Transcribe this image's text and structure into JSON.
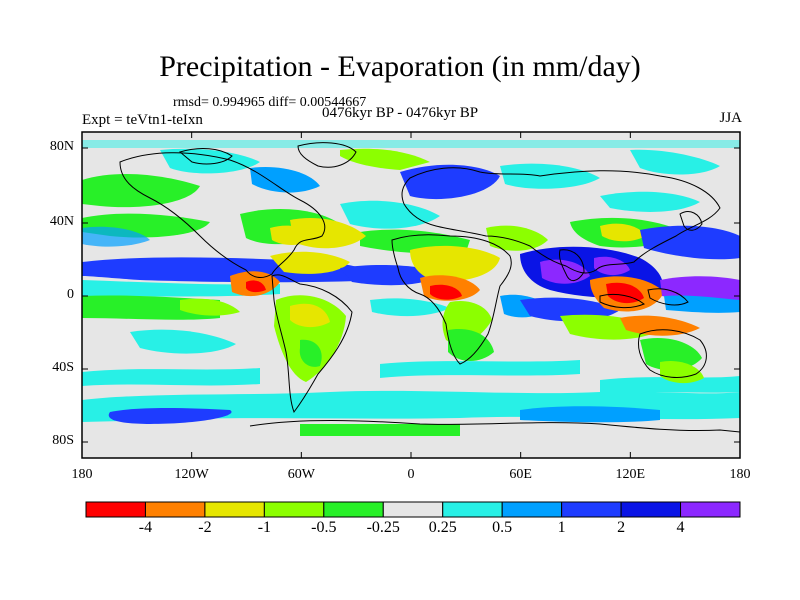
{
  "title": "Precipitation - Evaporation (in mm/day)",
  "stats": "rmsd= 0.994965 diff= 0.00544667",
  "experiment": "Expt = teVtn1-teIxn",
  "period": "0476kyr BP - 0476kyr BP",
  "season": "JJA",
  "lat_labels": [
    "80N",
    "40N",
    "0",
    "40S",
    "80S"
  ],
  "lon_labels": [
    "180",
    "120W",
    "60W",
    "0",
    "60E",
    "120E",
    "180"
  ],
  "colorbar": {
    "labels": [
      "-4",
      "-2",
      "-1",
      "-0.5",
      "-0.25",
      "0.25",
      "0.5",
      "1",
      "2",
      "4"
    ],
    "colors": [
      "#ff0000",
      "#ff8000",
      "#e6e600",
      "#8cff00",
      "#28f028",
      "#e6e6e6",
      "#28f0e6",
      "#00a0ff",
      "#1e3cff",
      "#0a14e6",
      "#8c28ff"
    ]
  }
}
